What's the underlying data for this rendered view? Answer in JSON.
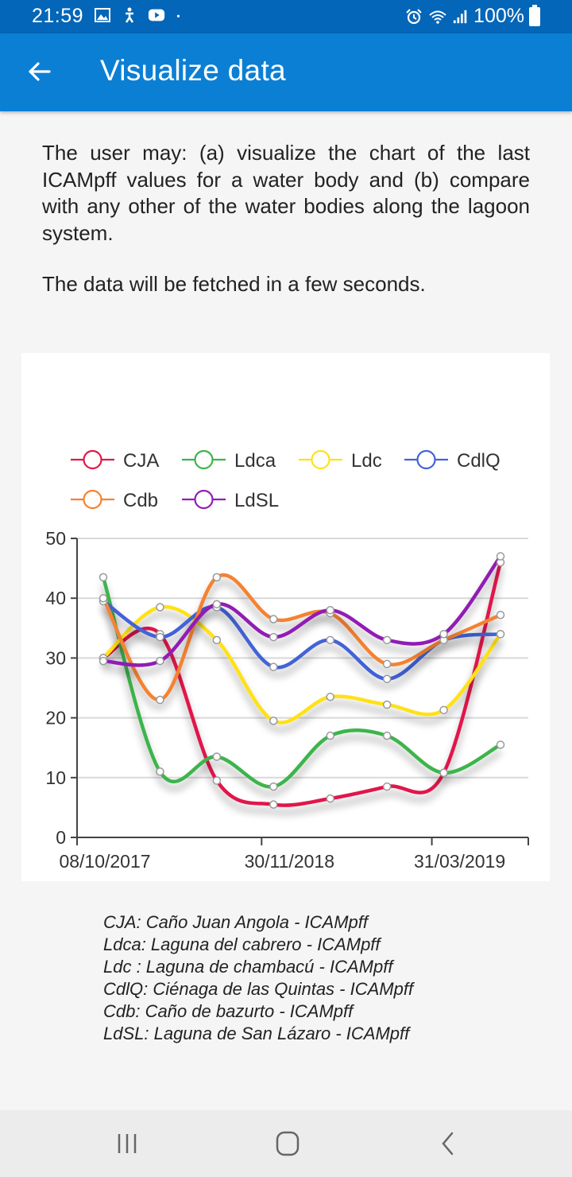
{
  "status_bar": {
    "time": "21:59",
    "battery": "100%",
    "icons": [
      "gallery-icon",
      "accessibility-icon",
      "youtube-icon",
      "dot-icon",
      "alarm-icon",
      "wifi-icon",
      "signal-icon",
      "battery-icon"
    ]
  },
  "app_bar": {
    "title": "Visualize data",
    "back_icon": "arrow-left-icon"
  },
  "content": {
    "intro": "The user may: (a) visualize the chart of the last ICAMpff values for a water body and (b) compare with any other of the water bodies along the lagoon system.",
    "fetch_note": "The data will be fetched in a few seconds."
  },
  "chart_data": {
    "type": "line",
    "x": [
      "08/10/2017",
      "",
      "",
      "30/11/2018",
      "",
      "",
      "31/03/2019",
      ""
    ],
    "xticks": [
      "08/10/2017",
      "30/11/2018",
      "31/03/2019"
    ],
    "ylim": [
      0,
      50
    ],
    "yticks": [
      0,
      10,
      20,
      30,
      40,
      50
    ],
    "grid": true,
    "legend_position": "top",
    "series": [
      {
        "name": "CJA",
        "color": "#e0194b",
        "values": [
          30,
          34,
          9.5,
          5.5,
          6.5,
          8.5,
          10.8,
          46
        ]
      },
      {
        "name": "Ldca",
        "color": "#3cb44b",
        "values": [
          43.5,
          11,
          13.5,
          8.5,
          17,
          17,
          10.8,
          15.5
        ]
      },
      {
        "name": "Ldc",
        "color": "#ffe119",
        "values": [
          30,
          38.5,
          33,
          19.5,
          23.5,
          22.2,
          21.3,
          34
        ]
      },
      {
        "name": "CdlQ",
        "color": "#4363d8",
        "values": [
          39.5,
          33.5,
          38.5,
          28.5,
          33,
          26.5,
          33,
          34
        ]
      },
      {
        "name": "Cdb",
        "color": "#f58231",
        "values": [
          40,
          23,
          43.5,
          36.5,
          37.5,
          29,
          33,
          37.2
        ]
      },
      {
        "name": "LdSL",
        "color": "#911eb4",
        "values": [
          29.5,
          29.5,
          39,
          33.5,
          38,
          33,
          34,
          47
        ]
      }
    ]
  },
  "notes": [
    "CJA: Caño Juan Angola - ICAMpff",
    "Ldca: Laguna del cabrero - ICAMpff",
    "Ldc : Laguna de chambacú - ICAMpff",
    "CdlQ: Ciénaga de las Quintas - ICAMpff",
    "Cdb: Caño de bazurto - ICAMpff",
    "LdSL: Laguna de San Lázaro - ICAMpff"
  ],
  "nav_bar": {
    "icons": [
      "recent-apps-icon",
      "home-icon",
      "back-icon"
    ]
  }
}
